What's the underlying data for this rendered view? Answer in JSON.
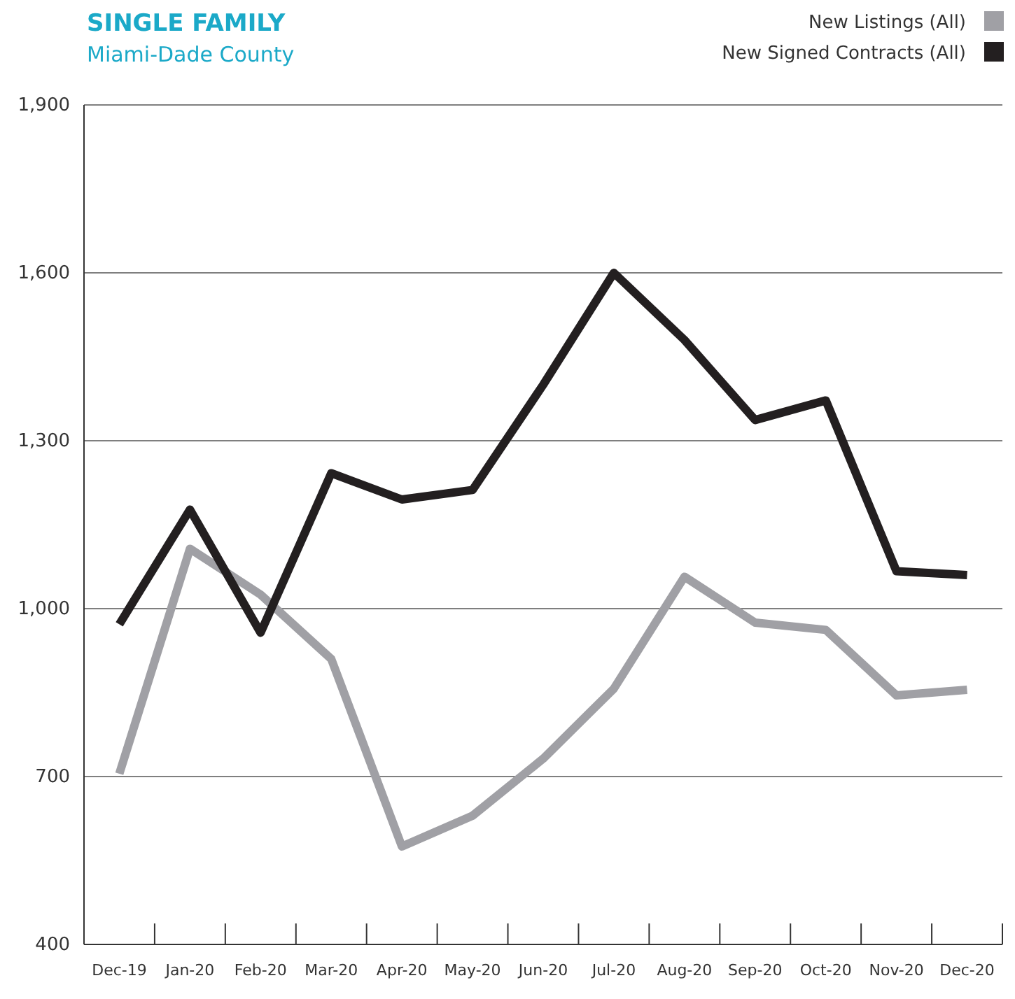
{
  "chart_data": {
    "type": "line",
    "title": "SINGLE FAMILY",
    "subtitle": "Miami-Dade County",
    "categories": [
      "Dec-19",
      "Jan-20",
      "Feb-20",
      "Mar-20",
      "Apr-20",
      "May-20",
      "Jun-20",
      "Jul-20",
      "Aug-20",
      "Sep-20",
      "Oct-20",
      "Nov-20",
      "Dec-20"
    ],
    "series": [
      {
        "name": "New Listings (All)",
        "color": "#a0a0a5",
        "values": [
          705,
          1107,
          1025,
          910,
          575,
          630,
          732,
          857,
          1057,
          975,
          962,
          845,
          855
        ]
      },
      {
        "name": "New Signed Contracts (All)",
        "color": "#231f20",
        "values": [
          972,
          1177,
          957,
          1242,
          1195,
          1212,
          1400,
          1600,
          1480,
          1337,
          1372,
          1067,
          1060
        ]
      }
    ],
    "ylim": [
      400,
      1900
    ],
    "yticks": [
      400,
      {
        "value": 700,
        "label": "700"
      },
      {
        "value": 1000,
        "label": "1,000"
      },
      {
        "value": 1300,
        "label": "1,300"
      },
      {
        "value": 1600,
        "label": "1,600"
      },
      {
        "value": 1900,
        "label": "1,900"
      }
    ],
    "grid": "y",
    "legend": "top right",
    "marker": "none",
    "line_style": "solid"
  }
}
